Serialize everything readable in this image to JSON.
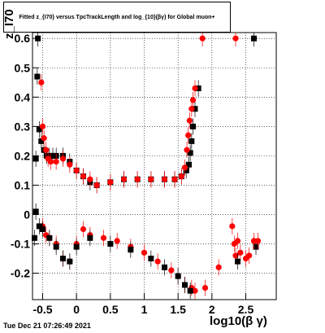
{
  "chart_data": {
    "type": "scatter",
    "title": "Fitted  z_{I70} versus TpcTrackLength and log_{10}(βγ) for Global muon+",
    "xlabel": "log10(β γ)",
    "ylabel": "z_I70",
    "xlim": [
      -0.65,
      2.95
    ],
    "ylim": [
      -0.29,
      0.62
    ],
    "x_ticks": [
      "-0.5",
      "0",
      "0.5",
      "1",
      "1.5",
      "2",
      "2.5"
    ],
    "y_ticks": [
      "-0.2",
      "-0.1",
      "0",
      "0.1",
      "0.2",
      "0.3",
      "0.4",
      "0.5",
      "0.6"
    ],
    "grid": true,
    "series": [
      {
        "name": "black",
        "color": "#000000",
        "x": [
          -0.6,
          -0.58,
          -0.57,
          -0.55,
          -0.52,
          -0.48,
          -0.44,
          -0.4,
          -0.35,
          -0.3,
          -0.2,
          -0.1,
          0.0,
          0.1,
          0.2,
          0.3,
          0.5,
          0.7,
          0.9,
          1.1,
          1.3,
          1.45,
          1.55,
          1.62,
          1.66,
          1.68,
          1.7,
          1.72,
          1.75,
          1.8,
          2.62,
          2.65
        ],
        "y": [
          0.19,
          0.47,
          0.6,
          0.29,
          0.25,
          0.22,
          0.2,
          0.2,
          0.2,
          0.2,
          0.2,
          0.18,
          0.15,
          0.13,
          0.11,
          0.1,
          0.11,
          0.12,
          0.12,
          0.12,
          0.12,
          0.12,
          0.13,
          0.15,
          0.17,
          0.21,
          0.25,
          0.3,
          0.36,
          0.43,
          0.6,
          -0.11
        ]
      },
      {
        "name": "red-upper",
        "color": "#ff0000",
        "x": [
          -0.52,
          -0.5,
          -0.48,
          -0.45,
          -0.42,
          -0.38,
          -0.3,
          -0.2,
          -0.1,
          0.0,
          0.1,
          0.2,
          0.3,
          0.5,
          0.7,
          0.9,
          1.1,
          1.3,
          1.45,
          1.55,
          1.6,
          1.63,
          1.65,
          1.67,
          1.7,
          1.72,
          1.75,
          1.86,
          2.35
        ],
        "y": [
          0.45,
          0.3,
          0.26,
          0.22,
          0.19,
          0.18,
          0.18,
          0.19,
          0.17,
          0.15,
          0.13,
          0.12,
          0.1,
          0.11,
          0.12,
          0.12,
          0.12,
          0.12,
          0.12,
          0.13,
          0.16,
          0.22,
          0.27,
          0.32,
          0.36,
          0.39,
          0.43,
          0.6,
          0.6
        ]
      },
      {
        "name": "red-lower",
        "color": "#ff0000",
        "x": [
          -0.5,
          -0.45,
          -0.4,
          -0.3,
          -0.2,
          -0.1,
          0.0,
          0.1,
          0.2,
          0.4,
          0.6,
          0.8,
          1.0,
          1.2,
          1.4,
          1.5,
          1.6,
          1.7,
          1.75,
          1.9,
          2.1,
          2.3,
          2.33,
          2.35,
          2.38,
          2.42,
          2.5,
          2.55,
          2.62,
          2.68
        ],
        "y": [
          -0.04,
          -0.07,
          -0.08,
          -0.1,
          -0.15,
          -0.16,
          -0.1,
          -0.05,
          -0.07,
          -0.08,
          -0.09,
          -0.11,
          -0.13,
          -0.16,
          -0.19,
          -0.21,
          -0.24,
          -0.25,
          -0.26,
          -0.25,
          -0.18,
          -0.04,
          -0.1,
          -0.14,
          -0.09,
          -0.13,
          -0.15,
          -0.14,
          -0.09,
          -0.09
        ]
      },
      {
        "name": "black-lower",
        "color": "#000000",
        "x": [
          -0.62,
          -0.6,
          -0.55,
          -0.5,
          -0.4,
          -0.3,
          -0.2,
          -0.1,
          0.0,
          0.2,
          0.5,
          0.8,
          1.1,
          1.3,
          1.5,
          1.6,
          1.68,
          2.38
        ],
        "y": [
          -0.08,
          0.01,
          -0.04,
          -0.05,
          -0.08,
          -0.11,
          -0.15,
          -0.16,
          -0.11,
          -0.08,
          -0.1,
          -0.12,
          -0.15,
          -0.18,
          -0.21,
          -0.24,
          -0.26,
          -0.16
        ]
      }
    ]
  },
  "ui": {
    "title_text": "Fitted  z_{I70} versus TpcTrackLength and log_{10}(βγ) for Global muon+",
    "footer_text": "Tue Dec 21 07:26:49 2021",
    "xlabel_text": "log10(β γ)",
    "ylabel_text": "z_I70"
  }
}
